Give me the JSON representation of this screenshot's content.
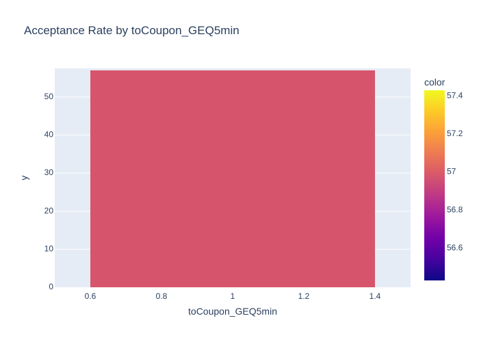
{
  "chart_data": {
    "type": "bar",
    "title": "Acceptance Rate by toCoupon_GEQ5min",
    "xlabel": "toCoupon_GEQ5min",
    "ylabel": "y",
    "x": [
      1
    ],
    "values": [
      56.98
    ],
    "bar_width": 0.8,
    "xlim": [
      0.5,
      1.5
    ],
    "ylim": [
      0,
      57.5
    ],
    "x_ticks": [
      0.6,
      0.8,
      1,
      1.2,
      1.4
    ],
    "x_tick_labels": [
      "0.6",
      "0.8",
      "1",
      "1.2",
      "1.4"
    ],
    "y_ticks": [
      0,
      10,
      20,
      30,
      40,
      50
    ],
    "y_tick_labels": [
      "0",
      "10",
      "20",
      "30",
      "40",
      "50"
    ],
    "colorbar": {
      "title": "color",
      "range": [
        56.43,
        57.43
      ],
      "ticks": [
        56.6,
        56.8,
        57,
        57.2,
        57.4
      ],
      "tick_labels": [
        "56.6",
        "56.8",
        "57",
        "57.2",
        "57.4"
      ],
      "colorscale": [
        "#0d0887",
        "#46039f",
        "#7201a8",
        "#9c179e",
        "#bd3786",
        "#d8576b",
        "#ed7953",
        "#fb9f3a",
        "#fdca26",
        "#f0f921"
      ]
    },
    "grid": true,
    "plot_bgcolor": "#e5ecf6"
  }
}
